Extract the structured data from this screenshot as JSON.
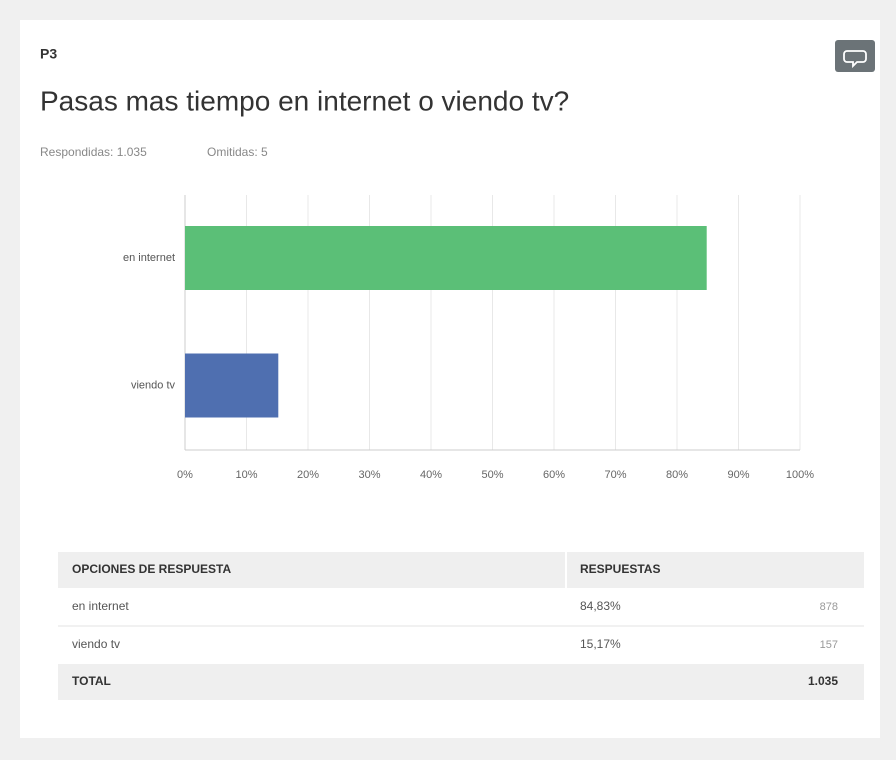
{
  "question": {
    "number": "P3",
    "title": "Pasas mas tiempo en internet o viendo tv?",
    "answered": "Respondidas: 1.035",
    "skipped": "Omitidas: 5"
  },
  "chart_data": {
    "type": "hbar",
    "categories": [
      "en internet",
      "viendo tv"
    ],
    "values": [
      84.83,
      15.17
    ],
    "colors": [
      "#5bbf77",
      "#4f6fb0"
    ],
    "xlim": [
      0,
      100
    ],
    "xticks": [
      {
        "value": 0,
        "label": "0%"
      },
      {
        "value": 10,
        "label": "10%"
      },
      {
        "value": 20,
        "label": "20%"
      },
      {
        "value": 30,
        "label": "30%"
      },
      {
        "value": 40,
        "label": "40%"
      },
      {
        "value": 50,
        "label": "50%"
      },
      {
        "value": 60,
        "label": "60%"
      },
      {
        "value": 70,
        "label": "70%"
      },
      {
        "value": 80,
        "label": "80%"
      },
      {
        "value": 90,
        "label": "90%"
      },
      {
        "value": 100,
        "label": "100%"
      }
    ],
    "grid": true
  },
  "table": {
    "header": [
      "OPCIONES DE RESPUESTA",
      "RESPUESTAS"
    ],
    "rows": [
      [
        "en internet",
        "84,83%",
        "878"
      ],
      [
        "viendo tv",
        "15,17%",
        "157"
      ]
    ],
    "total": [
      "TOTAL",
      "1.035"
    ]
  }
}
